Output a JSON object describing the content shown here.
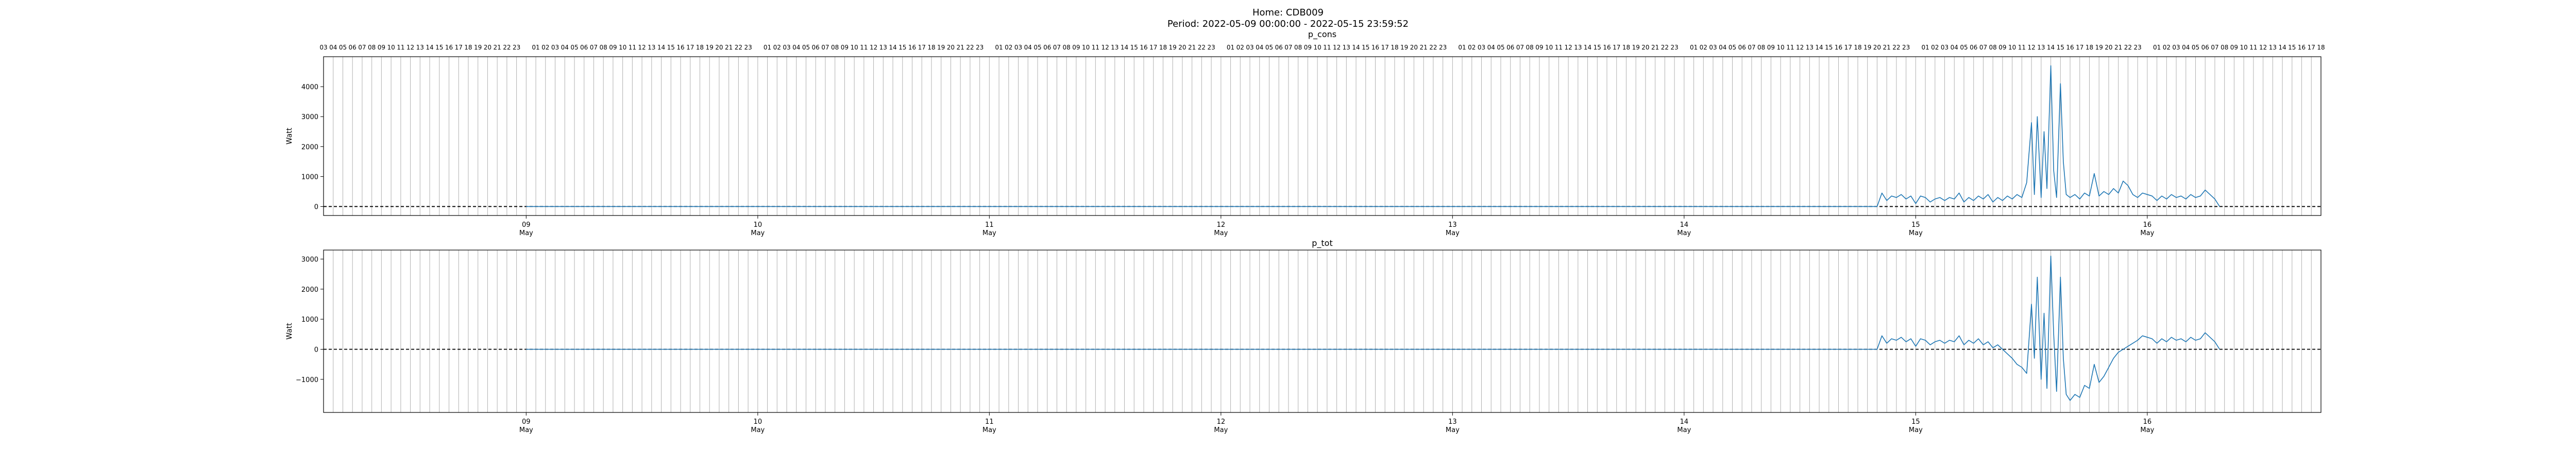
{
  "figure": {
    "title_line1": "Home: CDB009",
    "title_line2": "Period: 2022-05-09 00:00:00 - 2022-05-15 23:59:52"
  },
  "chart_data": [
    {
      "type": "line",
      "title": "p_cons",
      "ylabel": "Watt",
      "ylim": [
        -300,
        5000
      ],
      "yticks": [
        0,
        1000,
        2000,
        3000,
        4000
      ],
      "xlim_hours": [
        -21,
        186
      ],
      "grid": "vertical hourly",
      "reference_line": {
        "y": 0,
        "style": "dashed"
      },
      "x_major_labels": [
        "09\nMay",
        "10\nMay",
        "11\nMay",
        "12\nMay",
        "13\nMay",
        "14\nMay",
        "15\nMay",
        "16\nMay"
      ],
      "series": [
        {
          "color": "#1f77b4",
          "x_hours": [
            0,
            24,
            48,
            72,
            96,
            120,
            140,
            140.5,
            141,
            141.5,
            142,
            142.5,
            143,
            143.5,
            144,
            144.5,
            145,
            145.5,
            146,
            146.5,
            147,
            147.5,
            148,
            148.5,
            149,
            149.5,
            150,
            150.5,
            151,
            151.5,
            152,
            152.5,
            153,
            153.5,
            154,
            154.5,
            155,
            155.5,
            156,
            156.3,
            156.6,
            157,
            157.3,
            157.6,
            158,
            158.3,
            158.6,
            159,
            159.3,
            159.6,
            160,
            160.5,
            161,
            161.5,
            162,
            162.5,
            163,
            163.5,
            164,
            164.5,
            165,
            165.5,
            166,
            166.5,
            167,
            167.5,
            168,
            168.5,
            169,
            169.5,
            170,
            170.5,
            171,
            171.5,
            172,
            172.5,
            173,
            173.5,
            174,
            174.5,
            175,
            175.5
          ],
          "values": [
            0,
            0,
            0,
            0,
            0,
            0,
            0,
            450,
            200,
            350,
            300,
            400,
            250,
            350,
            100,
            350,
            300,
            150,
            250,
            300,
            200,
            300,
            250,
            450,
            150,
            300,
            200,
            350,
            250,
            400,
            150,
            300,
            200,
            350,
            250,
            400,
            300,
            800,
            2800,
            400,
            3000,
            300,
            2500,
            600,
            4700,
            1200,
            300,
            4100,
            1500,
            400,
            300,
            400,
            250,
            450,
            350,
            1100,
            350,
            500,
            400,
            600,
            450,
            850,
            700,
            400,
            300,
            450,
            400,
            350,
            200,
            350,
            250,
            400,
            300,
            350,
            250,
            400,
            300,
            350,
            550,
            400,
            250,
            0
          ]
        }
      ]
    },
    {
      "type": "line",
      "title": "p_tot",
      "ylabel": "Watt",
      "ylim": [
        -2100,
        3300
      ],
      "yticks": [
        -1000,
        0,
        1000,
        2000,
        3000
      ],
      "xlim_hours": [
        -21,
        186
      ],
      "grid": "vertical hourly",
      "reference_line": {
        "y": 0,
        "style": "dashed"
      },
      "x_major_labels": [
        "09\nMay",
        "10\nMay",
        "11\nMay",
        "12\nMay",
        "13\nMay",
        "14\nMay",
        "15\nMay",
        "16\nMay"
      ],
      "series": [
        {
          "color": "#1f77b4",
          "x_hours": [
            0,
            24,
            48,
            72,
            96,
            120,
            140,
            140.5,
            141,
            141.5,
            142,
            142.5,
            143,
            143.5,
            144,
            144.5,
            145,
            145.5,
            146,
            146.5,
            147,
            147.5,
            148,
            148.5,
            149,
            149.5,
            150,
            150.5,
            151,
            151.5,
            152,
            152.5,
            153,
            153.5,
            154,
            154.5,
            155,
            155.5,
            156,
            156.3,
            156.6,
            157,
            157.3,
            157.6,
            158,
            158.3,
            158.6,
            159,
            159.3,
            159.6,
            160,
            160.5,
            161,
            161.5,
            162,
            162.5,
            163,
            163.5,
            164,
            164.5,
            165,
            165.5,
            166,
            166.5,
            167,
            167.5,
            168,
            168.5,
            169,
            169.5,
            170,
            170.5,
            171,
            171.5,
            172,
            172.5,
            173,
            173.5,
            174,
            174.5,
            175,
            175.5
          ],
          "values": [
            0,
            0,
            0,
            0,
            0,
            0,
            0,
            450,
            200,
            350,
            300,
            400,
            250,
            350,
            100,
            350,
            300,
            150,
            250,
            300,
            200,
            300,
            250,
            450,
            150,
            300,
            200,
            350,
            150,
            250,
            50,
            150,
            0,
            -150,
            -300,
            -500,
            -600,
            -800,
            1500,
            -300,
            2400,
            -1000,
            1200,
            -1300,
            3100,
            500,
            -1400,
            2400,
            -300,
            -1500,
            -1700,
            -1500,
            -1600,
            -1200,
            -1300,
            -500,
            -1100,
            -900,
            -600,
            -300,
            -100,
            0,
            100,
            200,
            300,
            450,
            400,
            350,
            200,
            350,
            250,
            400,
            300,
            350,
            250,
            400,
            300,
            350,
            550,
            400,
            250,
            0
          ]
        }
      ]
    }
  ]
}
